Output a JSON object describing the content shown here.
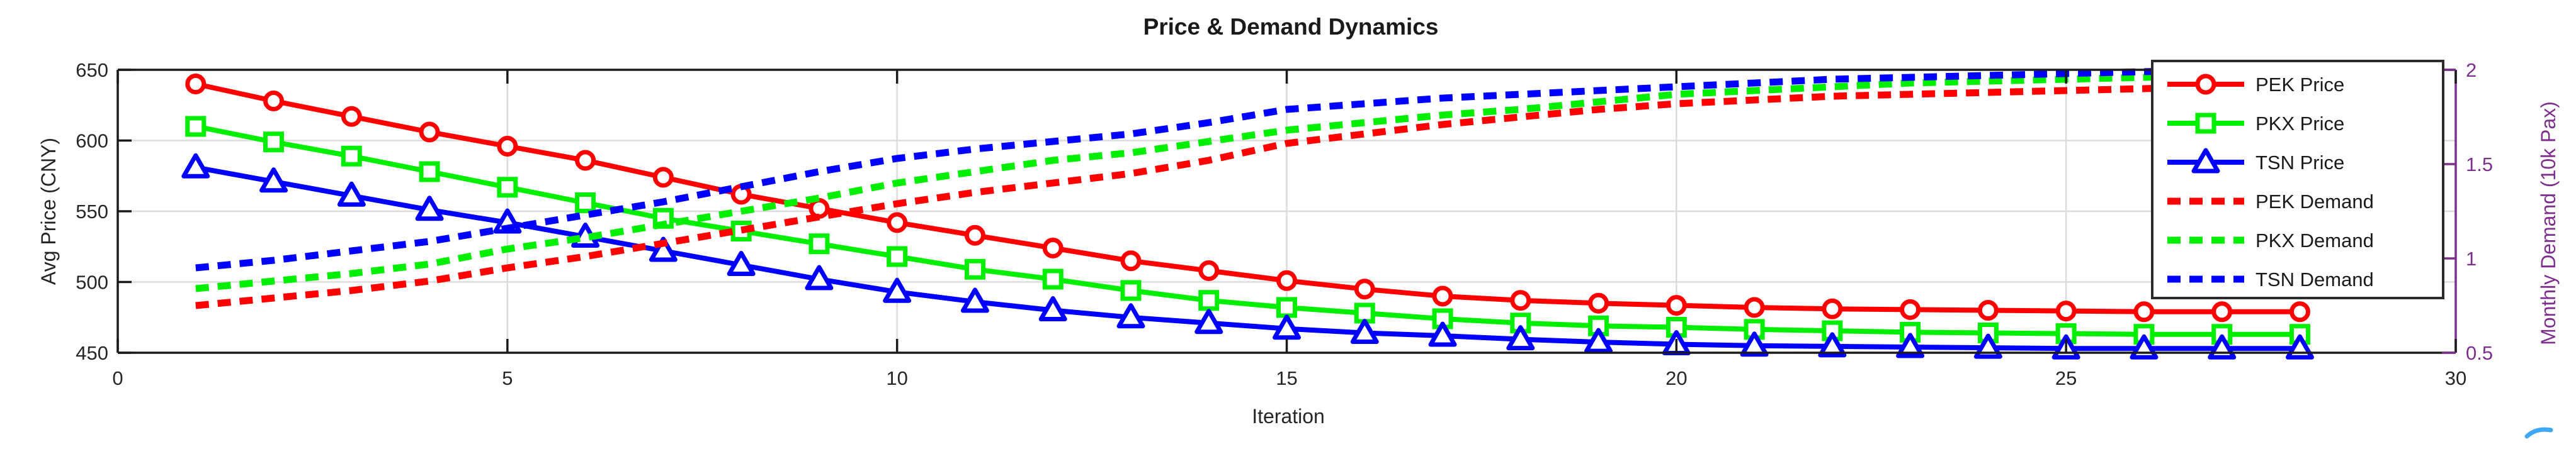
{
  "chart_data": {
    "type": "line",
    "title": "Price & Demand Dynamics",
    "xlabel": "Iteration",
    "x": [
      1,
      2,
      3,
      4,
      5,
      6,
      7,
      8,
      9,
      10,
      11,
      12,
      13,
      14,
      15,
      16,
      17,
      18,
      19,
      20,
      21,
      22,
      23,
      24,
      25,
      26,
      27,
      28
    ],
    "series": [
      {
        "name": "PEK Price",
        "color": "#FF0000",
        "style": "solid",
        "marker": "circle",
        "axis": "left",
        "values": [
          640,
          628,
          617,
          606,
          596,
          586,
          574,
          562,
          552,
          542,
          533,
          524,
          515,
          508,
          501,
          495,
          490,
          487,
          485,
          483.5,
          482,
          481,
          480.5,
          480,
          479.5,
          479,
          479,
          479
        ]
      },
      {
        "name": "PKX Price",
        "color": "#00EE00",
        "style": "solid",
        "marker": "square",
        "axis": "left",
        "values": [
          610,
          599,
          589,
          578,
          567,
          556,
          545,
          536,
          527,
          518,
          509,
          502,
          494,
          487,
          482,
          478,
          474,
          471,
          469,
          468,
          466.5,
          465.5,
          464.5,
          464,
          463.5,
          463,
          463,
          463
        ]
      },
      {
        "name": "TSN Price",
        "color": "#0000FF",
        "style": "solid",
        "marker": "triangle",
        "axis": "left",
        "values": [
          581,
          571,
          561,
          551,
          542,
          532,
          522,
          512,
          502,
          493,
          486,
          480,
          475,
          471,
          467,
          464,
          462,
          459.5,
          457.5,
          456,
          455,
          454.5,
          454,
          453.5,
          453,
          453,
          453,
          453
        ]
      },
      {
        "name": "PEK Demand",
        "color": "#FF0000",
        "style": "dashed",
        "marker": "none",
        "axis": "right",
        "values": [
          0.75,
          0.79,
          0.83,
          0.88,
          0.95,
          1.01,
          1.08,
          1.15,
          1.22,
          1.29,
          1.35,
          1.4,
          1.45,
          1.52,
          1.61,
          1.66,
          1.71,
          1.75,
          1.79,
          1.82,
          1.84,
          1.86,
          1.87,
          1.88,
          1.89,
          1.9,
          1.91,
          1.91
        ]
      },
      {
        "name": "PKX Demand",
        "color": "#00EE00",
        "style": "dashed",
        "marker": "none",
        "axis": "right",
        "values": [
          0.84,
          0.88,
          0.92,
          0.97,
          1.05,
          1.11,
          1.18,
          1.25,
          1.32,
          1.4,
          1.46,
          1.52,
          1.56,
          1.62,
          1.68,
          1.72,
          1.76,
          1.79,
          1.83,
          1.87,
          1.89,
          1.91,
          1.93,
          1.94,
          1.95,
          1.96,
          1.97,
          1.97
        ]
      },
      {
        "name": "TSN Demand",
        "color": "#0000FF",
        "style": "dashed",
        "marker": "none",
        "axis": "right",
        "values": [
          0.95,
          0.99,
          1.04,
          1.09,
          1.16,
          1.23,
          1.3,
          1.38,
          1.46,
          1.53,
          1.58,
          1.62,
          1.66,
          1.72,
          1.79,
          1.82,
          1.85,
          1.87,
          1.89,
          1.91,
          1.93,
          1.95,
          1.96,
          1.97,
          1.98,
          1.99,
          2.0,
          2.0
        ]
      }
    ],
    "axes": {
      "x": {
        "label": "Iteration",
        "ticks": [
          0,
          5,
          10,
          15,
          20,
          25,
          30
        ],
        "range": [
          0,
          30
        ],
        "grid": true
      },
      "left": {
        "label": "Avg Price (CNY)",
        "ticks": [
          450,
          500,
          550,
          600,
          650
        ],
        "range": [
          450,
          650
        ],
        "color": "#262626",
        "grid": true
      },
      "right": {
        "label": "Monthly Demand (10k Pax)",
        "ticks": [
          0.5,
          1,
          1.5,
          2
        ],
        "tick_labels": [
          "0.5",
          "1",
          "1.5",
          "2"
        ],
        "range": [
          0.5,
          2
        ],
        "color": "#7E2F8E",
        "grid": false
      }
    },
    "legend": {
      "position": "top-right-inside",
      "entries": [
        "PEK Price",
        "PKX Price",
        "TSN Price",
        "PEK Demand",
        "PKX Demand",
        "TSN Demand"
      ]
    },
    "grid_color": "#DBDBDB",
    "box_color": "#1a1a1a"
  },
  "annotations": {
    "corner_mark": {
      "description": "small cyan swoosh mark at bottom-right corner",
      "color": "#3FA9F5"
    }
  }
}
